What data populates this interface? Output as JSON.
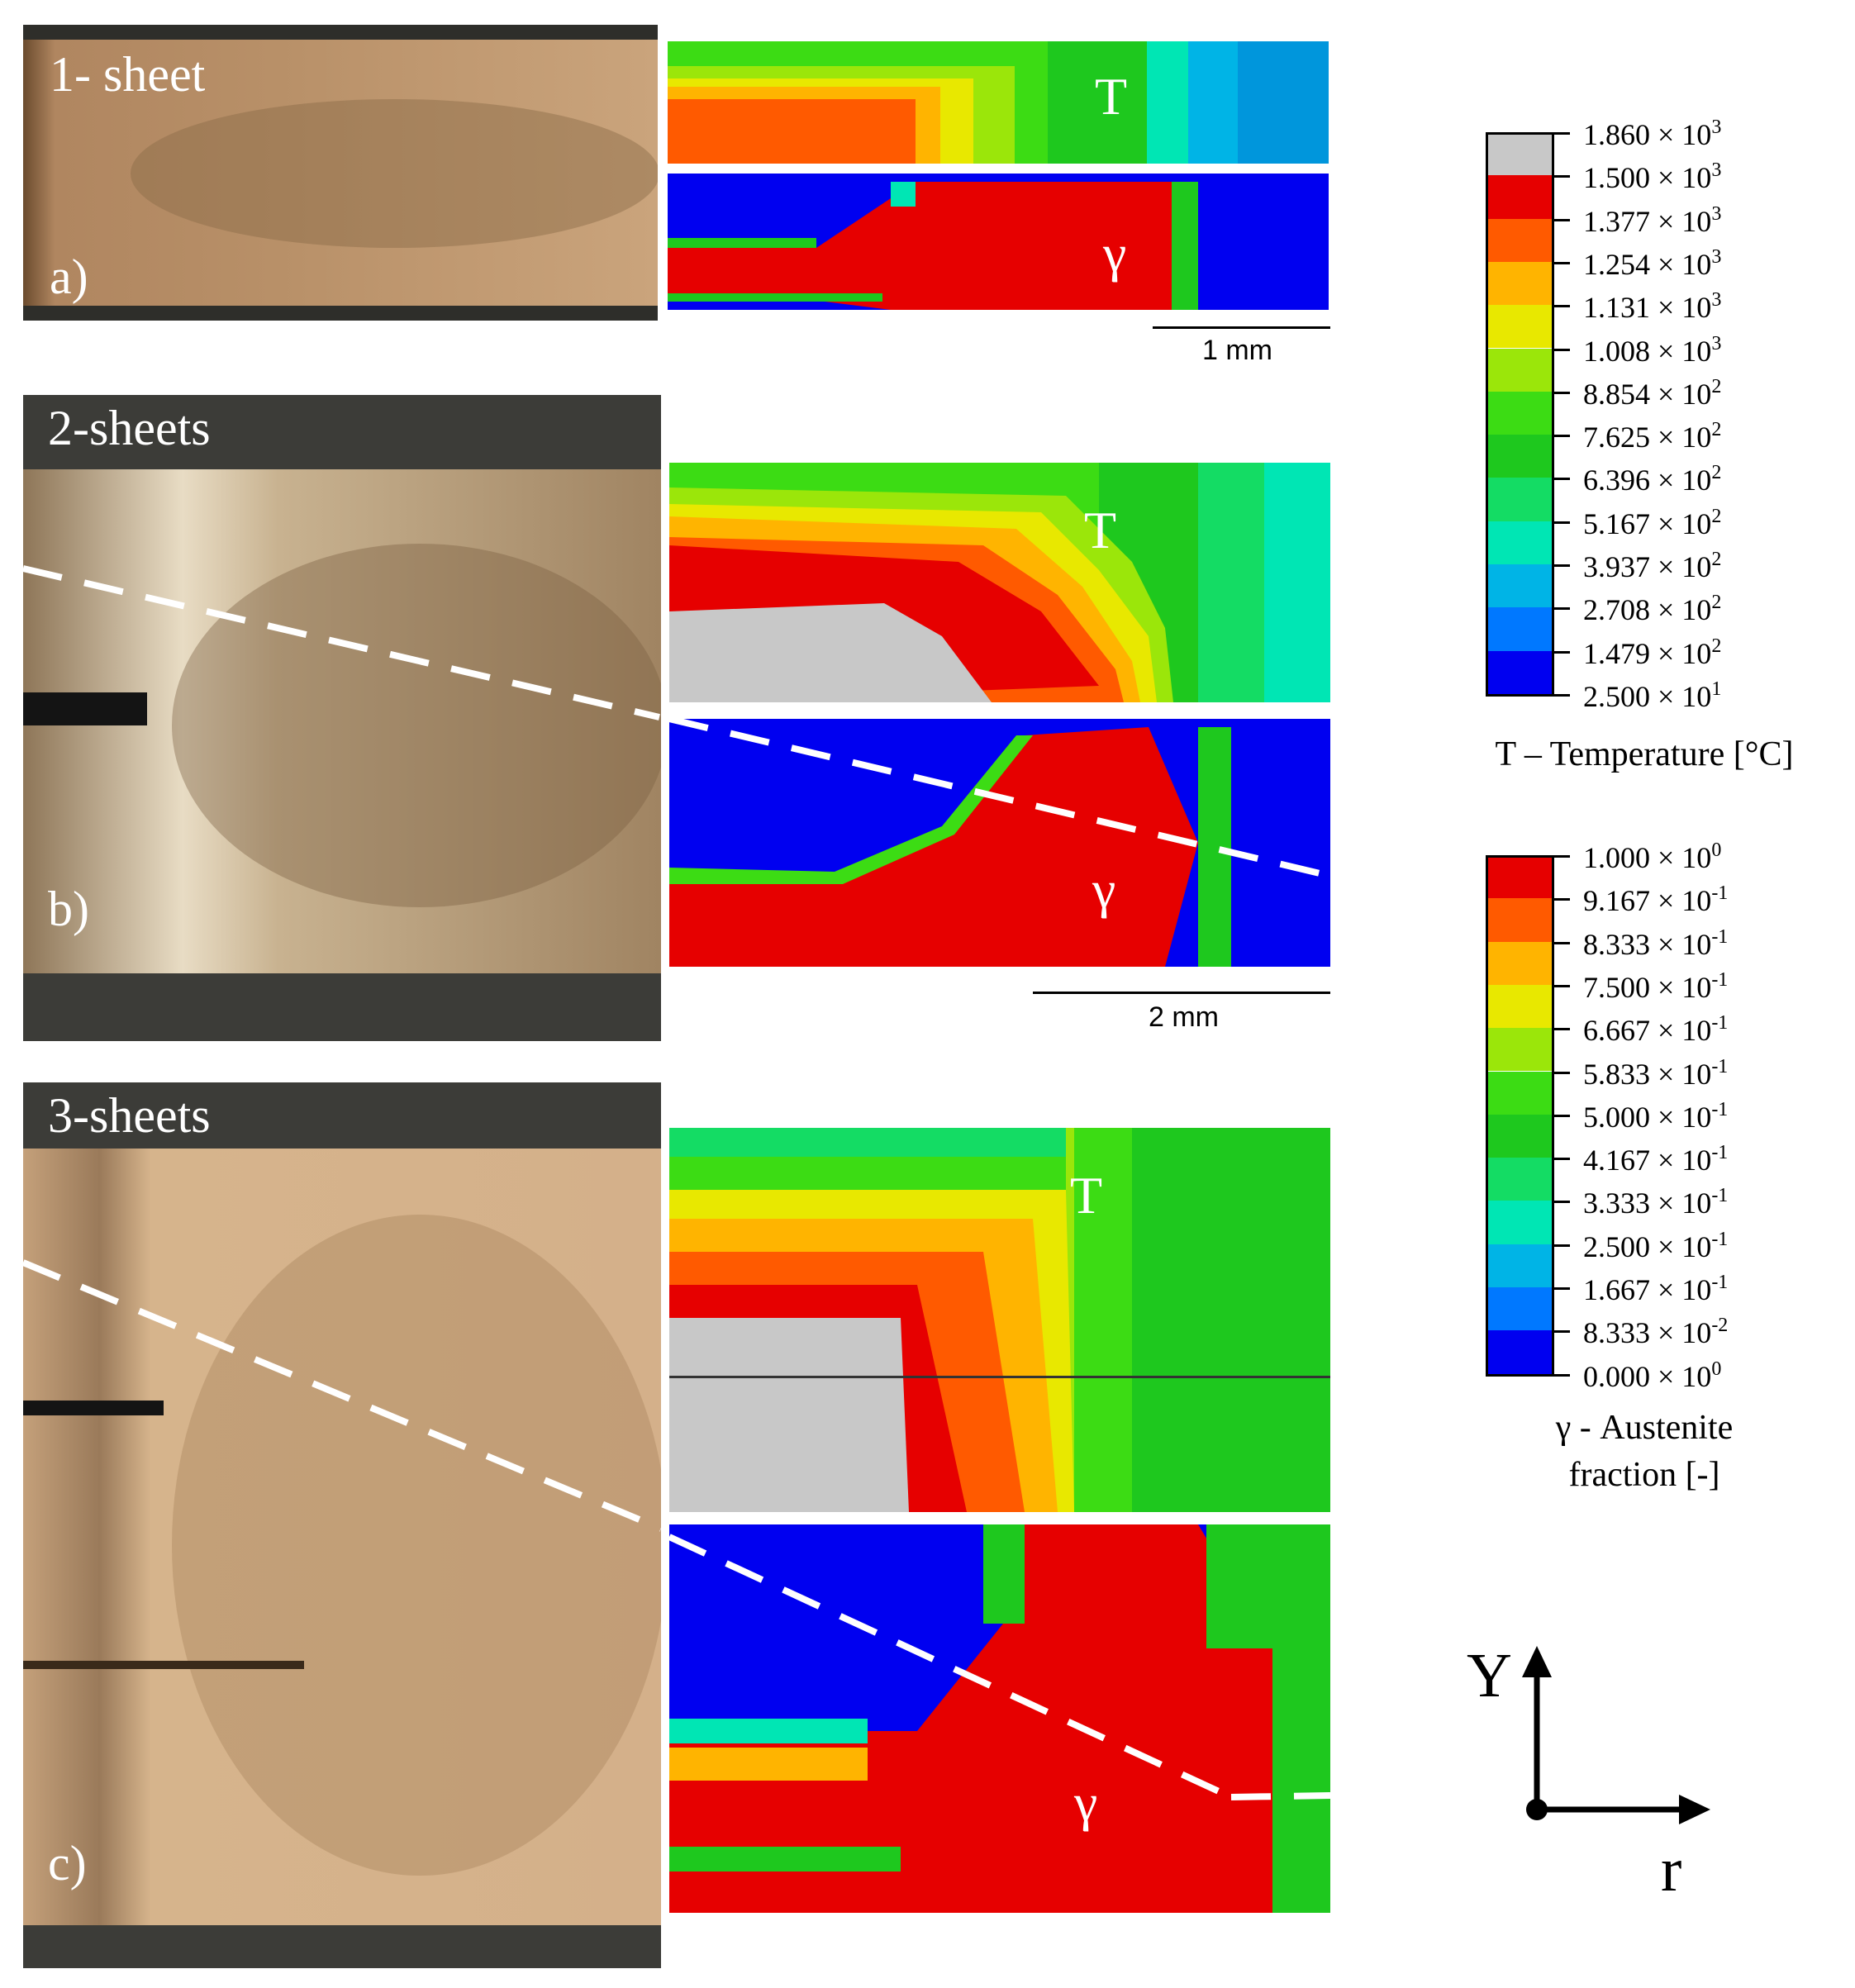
{
  "panels": [
    {
      "id": "a",
      "sheet_label": "1- sheet",
      "panel_letter": "a)",
      "top_field": "T",
      "bottom_field": "γ",
      "scalebar": "1 mm"
    },
    {
      "id": "b",
      "sheet_label": "2-sheets",
      "panel_letter": "b)",
      "top_field": "T",
      "bottom_field": "γ",
      "scalebar": "2 mm"
    },
    {
      "id": "c",
      "sheet_label": "3-sheets",
      "panel_letter": "c)",
      "top_field": "T",
      "bottom_field": "γ"
    }
  ],
  "temperature_legend": {
    "title": "T – Temperature [°C]",
    "levels": [
      {
        "mantissa": "1.860",
        "exp": "3"
      },
      {
        "mantissa": "1.500",
        "exp": "3"
      },
      {
        "mantissa": "1.377",
        "exp": "3"
      },
      {
        "mantissa": "1.254",
        "exp": "3"
      },
      {
        "mantissa": "1.131",
        "exp": "3"
      },
      {
        "mantissa": "1.008",
        "exp": "3"
      },
      {
        "mantissa": "8.854",
        "exp": "2"
      },
      {
        "mantissa": "7.625",
        "exp": "2"
      },
      {
        "mantissa": "6.396",
        "exp": "2"
      },
      {
        "mantissa": "5.167",
        "exp": "2"
      },
      {
        "mantissa": "3.937",
        "exp": "2"
      },
      {
        "mantissa": "2.708",
        "exp": "2"
      },
      {
        "mantissa": "1.479",
        "exp": "2"
      },
      {
        "mantissa": "2.500",
        "exp": "1"
      }
    ],
    "colors": [
      "#c8c8c8",
      "#e60000",
      "#ff5a00",
      "#ffb400",
      "#e8e800",
      "#9be60a",
      "#3cdc14",
      "#1ec81e",
      "#14dc64",
      "#00e6b4",
      "#00b4e6",
      "#0078ff",
      "#0000f0"
    ]
  },
  "austenite_legend": {
    "title_line1": "γ - Austenite",
    "title_line2": "fraction [-]",
    "levels": [
      {
        "mantissa": "1.000",
        "exp": "0"
      },
      {
        "mantissa": "9.167",
        "exp": "-1"
      },
      {
        "mantissa": "8.333",
        "exp": "-1"
      },
      {
        "mantissa": "7.500",
        "exp": "-1"
      },
      {
        "mantissa": "6.667",
        "exp": "-1"
      },
      {
        "mantissa": "5.833",
        "exp": "-1"
      },
      {
        "mantissa": "5.000",
        "exp": "-1"
      },
      {
        "mantissa": "4.167",
        "exp": "-1"
      },
      {
        "mantissa": "3.333",
        "exp": "-1"
      },
      {
        "mantissa": "2.500",
        "exp": "-1"
      },
      {
        "mantissa": "1.667",
        "exp": "-1"
      },
      {
        "mantissa": "8.333",
        "exp": "-2"
      },
      {
        "mantissa": "0.000",
        "exp": "0"
      }
    ],
    "colors": [
      "#e60000",
      "#ff5a00",
      "#ffb400",
      "#e8e800",
      "#9be60a",
      "#3cdc14",
      "#1ec81e",
      "#14dc64",
      "#00e6b4",
      "#00b4e6",
      "#0078ff",
      "#0000f0"
    ]
  },
  "axes": {
    "vertical": "Y",
    "horizontal": "r"
  },
  "times_sign": "×"
}
